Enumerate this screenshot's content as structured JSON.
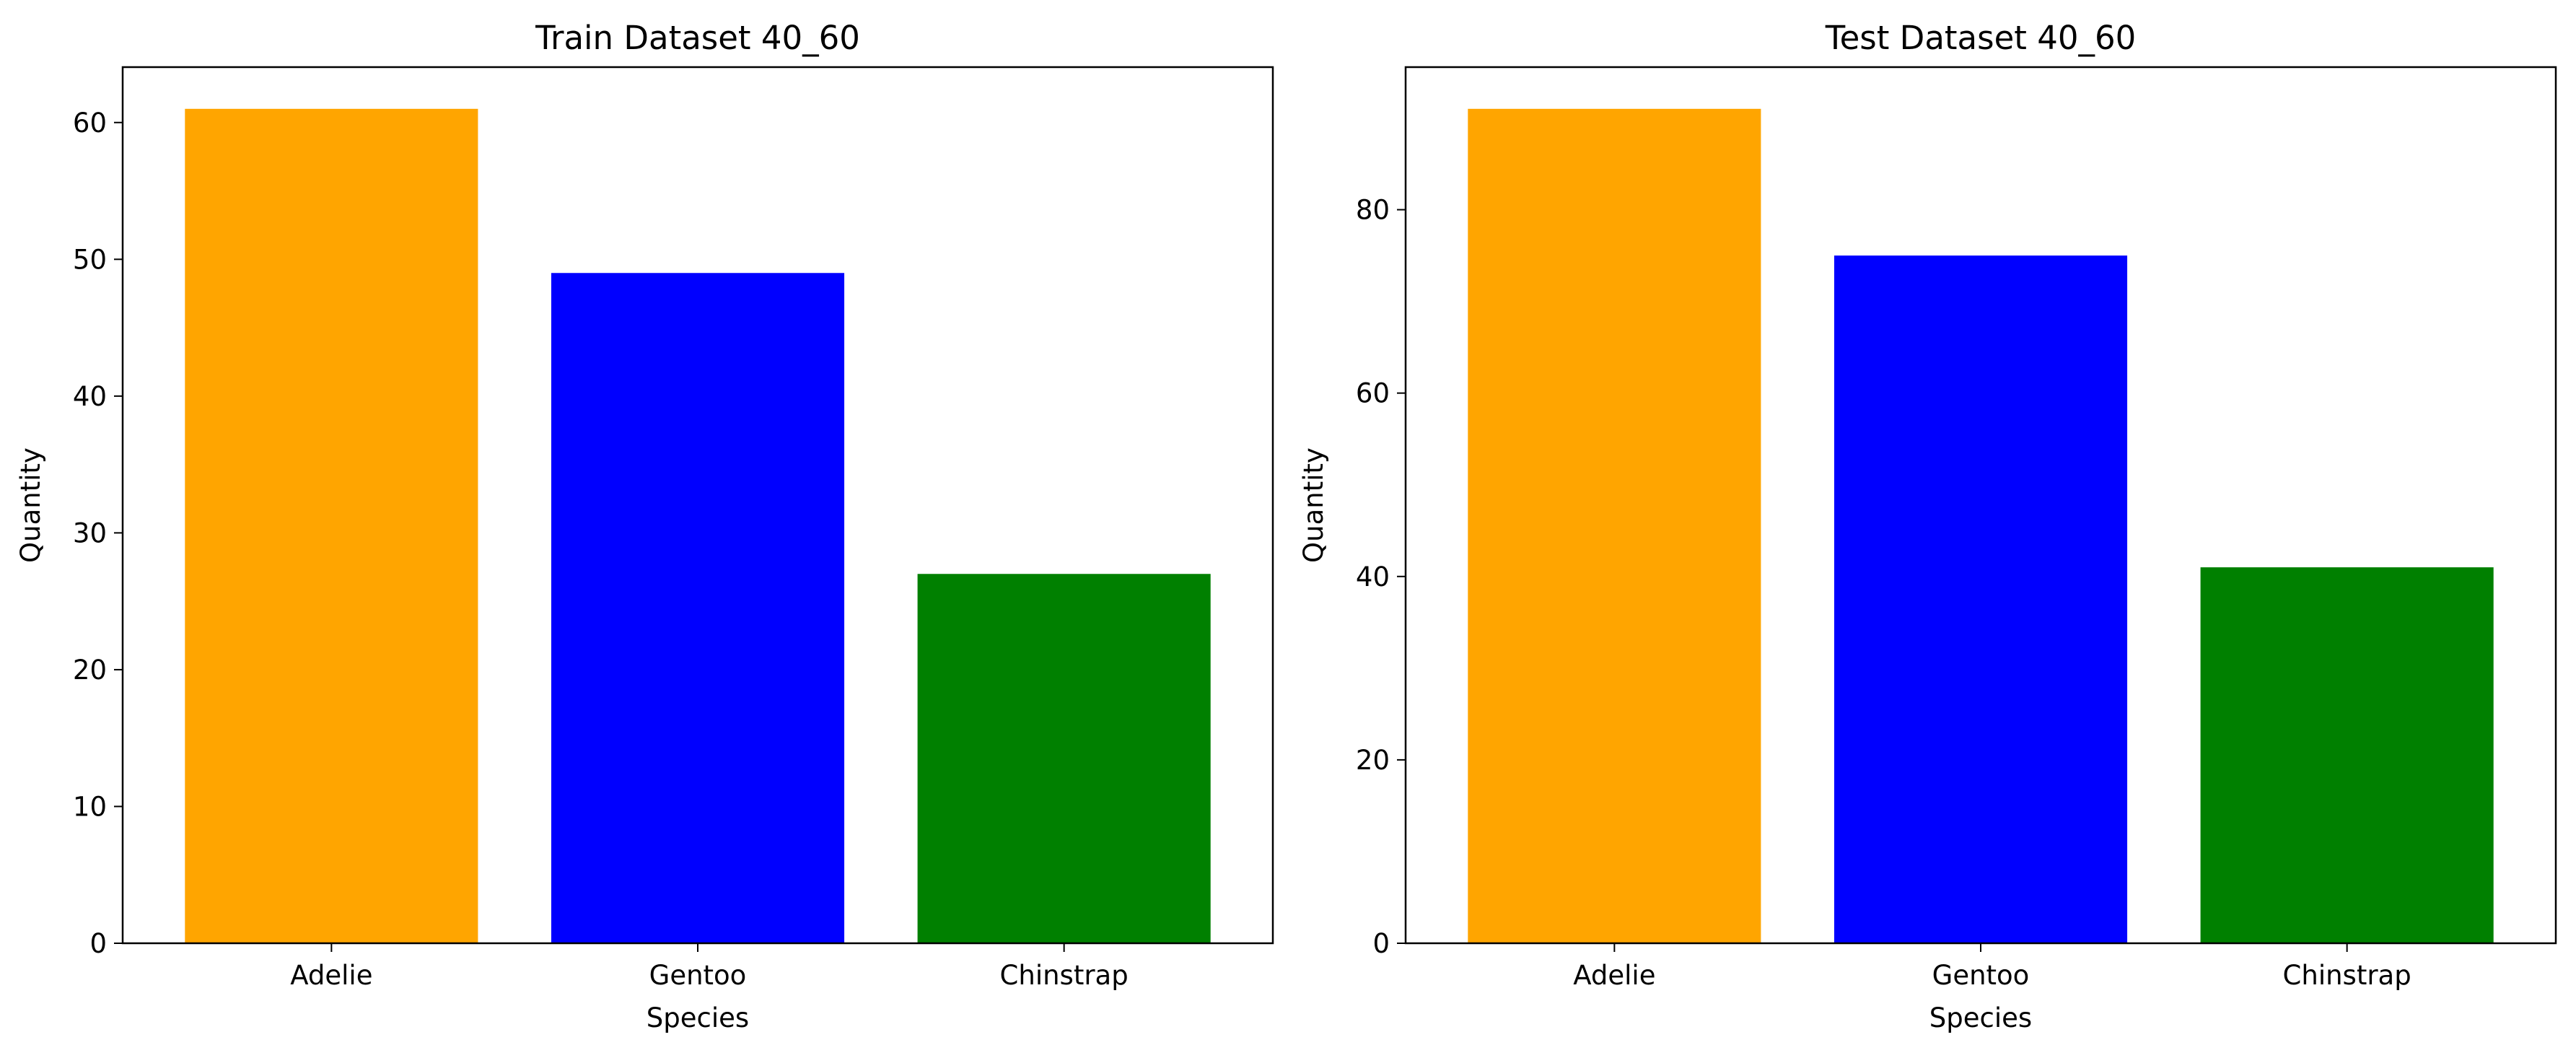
{
  "chart_data": [
    {
      "type": "bar",
      "title": "Train Dataset 40_60",
      "xlabel": "Species",
      "ylabel": "Quantity",
      "categories": [
        "Adelie",
        "Gentoo",
        "Chinstrap"
      ],
      "values": [
        61,
        49,
        27
      ],
      "colors": [
        "#ffa500",
        "#0000ff",
        "#008000"
      ],
      "ylim": [
        0,
        64.05
      ],
      "yticks": [
        0,
        10,
        20,
        30,
        40,
        50,
        60
      ],
      "grid": false,
      "legend": "none"
    },
    {
      "type": "bar",
      "title": "Test Dataset 40_60",
      "xlabel": "Species",
      "ylabel": "Quantity",
      "categories": [
        "Adelie",
        "Gentoo",
        "Chinstrap"
      ],
      "values": [
        91,
        75,
        41
      ],
      "colors": [
        "#ffa500",
        "#0000ff",
        "#008000"
      ],
      "ylim": [
        0,
        95.55
      ],
      "yticks": [
        0,
        20,
        40,
        60,
        80
      ],
      "grid": false,
      "legend": "none"
    }
  ]
}
